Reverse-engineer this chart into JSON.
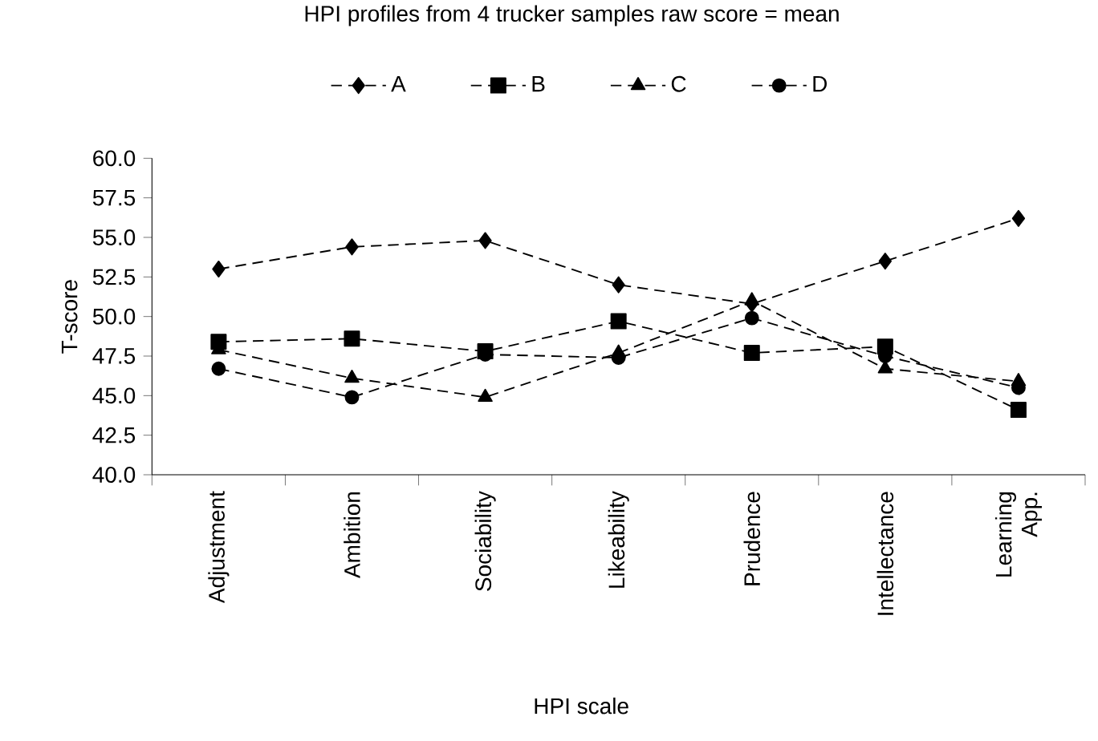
{
  "chart_data": {
    "type": "line",
    "title": "HPI profiles from 4 trucker samples raw score = mean",
    "xlabel": "HPI scale",
    "ylabel": "T-score",
    "categories": [
      "Adjustment",
      "Ambition",
      "Sociability",
      "Likeability",
      "Prudence",
      "Intellectance",
      "Learning App."
    ],
    "series": [
      {
        "name": "A",
        "color": "#000000",
        "marker": "diamond",
        "line_style": "dashed",
        "values": [
          53.0,
          54.4,
          54.8,
          52.0,
          50.8,
          53.5,
          56.2
        ]
      },
      {
        "name": "B",
        "color": "#000000",
        "marker": "square",
        "line_style": "dashed",
        "values": [
          48.4,
          48.6,
          47.8,
          49.7,
          47.7,
          48.1,
          44.1
        ]
      },
      {
        "name": "C",
        "color": "#000000",
        "marker": "triangle",
        "line_style": "dashed",
        "values": [
          47.9,
          46.1,
          44.9,
          47.7,
          51.0,
          46.7,
          45.9
        ]
      },
      {
        "name": "D",
        "color": "#000000",
        "marker": "circle",
        "line_style": "dashed",
        "values": [
          46.7,
          44.9,
          47.6,
          47.4,
          49.9,
          47.5,
          45.5
        ]
      }
    ],
    "ylim": [
      40,
      60
    ],
    "yticks": [
      {
        "value": 40,
        "label": "40.0"
      },
      {
        "value": 42.5,
        "label": "42.5"
      },
      {
        "value": 45,
        "label": "45.0"
      },
      {
        "value": 47.5,
        "label": "47.5"
      },
      {
        "value": 50,
        "label": "50.0"
      },
      {
        "value": 52.5,
        "label": "52.5"
      },
      {
        "value": 55,
        "label": "55.0"
      },
      {
        "value": 57.5,
        "label": "57.5"
      },
      {
        "value": 60,
        "label": "60.0"
      }
    ],
    "grid": false,
    "legend": "top"
  }
}
